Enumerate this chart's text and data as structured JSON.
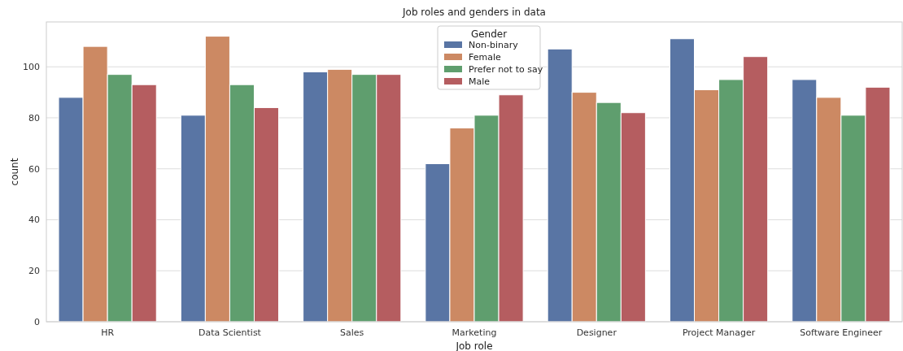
{
  "chart_data": {
    "type": "bar",
    "title": "Job roles and genders in data",
    "xlabel": "Job role",
    "ylabel": "count",
    "categories": [
      "HR",
      "Data Scientist",
      "Sales",
      "Marketing",
      "Designer",
      "Project Manager",
      "Software Engineer"
    ],
    "series": [
      {
        "name": "Non-binary",
        "color": "#5975a4",
        "values": [
          88,
          81,
          98,
          62,
          107,
          111,
          95
        ]
      },
      {
        "name": "Female",
        "color": "#cc8963",
        "values": [
          108,
          112,
          99,
          76,
          90,
          91,
          88
        ]
      },
      {
        "name": "Prefer not to say",
        "color": "#5f9e6e",
        "values": [
          97,
          93,
          97,
          81,
          86,
          95,
          81
        ]
      },
      {
        "name": "Male",
        "color": "#b55d60",
        "values": [
          93,
          84,
          97,
          89,
          82,
          104,
          92
        ]
      }
    ],
    "legend_title": "Gender",
    "legend": "top",
    "grid": "y",
    "ylim": [
      0,
      117.6
    ],
    "yticks": [
      0,
      20,
      40,
      60,
      80,
      100
    ]
  }
}
